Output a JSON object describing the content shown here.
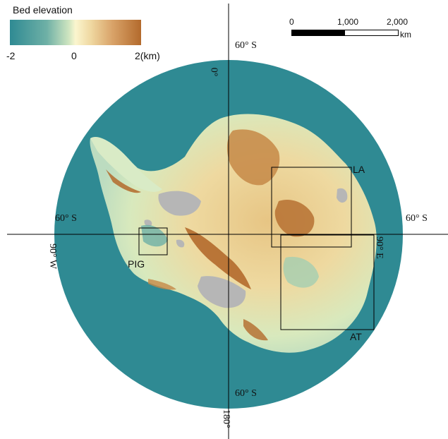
{
  "legend": {
    "title": "Bed elevation",
    "min_label": "-2",
    "mid_label": "0",
    "max_label": "2(km)",
    "colors": [
      "#2f8a93",
      "#6eb0a6",
      "#cfe5c0",
      "#fbf6cf",
      "#efd7a0",
      "#d9a369",
      "#b36a2c"
    ]
  },
  "scale_bar": {
    "ticks": [
      "0",
      "1,000",
      "2,000"
    ],
    "unit": "km"
  },
  "graticule": {
    "lat_top": "60°   S",
    "lat_bottom": "60°   S",
    "lat_left": "60°   S",
    "lat_right": "60°   S",
    "lon_top": "0°",
    "lon_bottom": "180°",
    "lon_left": "90°  W",
    "lon_right": "90°  E"
  },
  "regions": {
    "la": "LA",
    "at": "AT",
    "pig": "PIG"
  },
  "map_colors": {
    "ocean": "#2f8a93",
    "ice_shelf": "#b6b6b6",
    "coastal": "#cfe5c0",
    "highland": "#b36a2c",
    "midland": "#e8c98a"
  }
}
